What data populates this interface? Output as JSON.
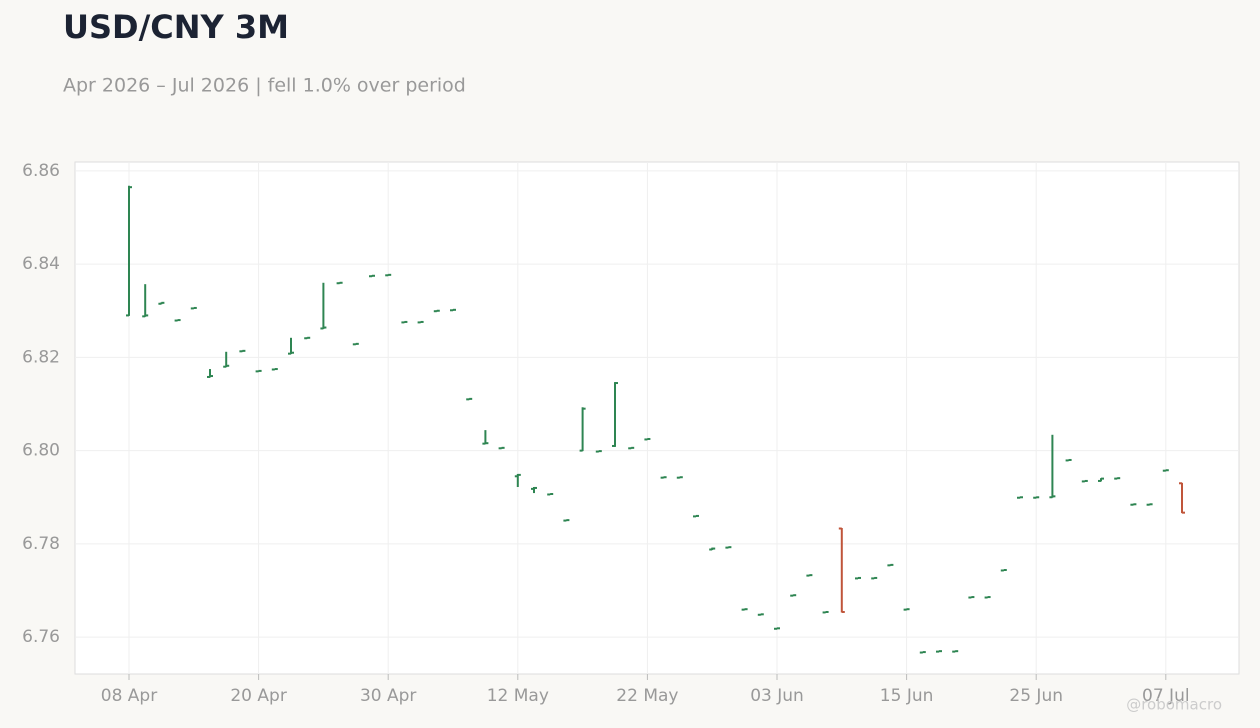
{
  "chart_data": {
    "type": "ohlc",
    "title": "USD/CNY 3M",
    "subtitle": "Apr 2026 – Jul 2026 | fell 1.0% over period",
    "watermark": "@robomacro",
    "categories": [
      "08 Apr",
      null,
      null,
      null,
      null,
      null,
      null,
      null,
      "20 Apr",
      null,
      null,
      null,
      null,
      null,
      null,
      null,
      "30 Apr",
      null,
      null,
      null,
      null,
      null,
      null,
      null,
      "12 May",
      null,
      null,
      null,
      null,
      null,
      null,
      null,
      "22 May",
      null,
      null,
      null,
      null,
      null,
      null,
      null,
      "03 Jun",
      null,
      null,
      null,
      null,
      null,
      null,
      null,
      "15 Jun",
      null,
      null,
      null,
      null,
      null,
      null,
      null,
      "25 Jun",
      null,
      null,
      null,
      null,
      null,
      null,
      null,
      "07 Jul",
      null
    ],
    "up_color": "#2e8552",
    "down_color": "#c0553a",
    "open": [
      6.829,
      6.8288,
      6.8315,
      6.8279,
      6.8305,
      6.8158,
      6.818,
      6.8213,
      6.817,
      6.8174,
      6.8208,
      6.8241,
      6.8262,
      6.8359,
      6.8228,
      6.8374,
      6.8376,
      6.8275,
      6.8275,
      6.8299,
      6.8301,
      6.811,
      6.8015,
      6.8005,
      6.7945,
      6.7918,
      6.7906,
      6.785,
      6.8,
      6.7998,
      6.801,
      6.8005,
      6.8024,
      6.7942,
      6.7942,
      6.7859,
      6.7788,
      6.7792,
      6.7659,
      6.7648,
      6.7618,
      6.7689,
      6.7732,
      6.7653,
      6.7833,
      6.7726,
      6.7726,
      6.7754,
      6.7659,
      6.7567,
      6.7569,
      6.7569,
      6.7685,
      6.7685,
      6.7743,
      6.7899,
      6.7899,
      6.79,
      6.7979,
      6.7934,
      6.7935,
      6.794,
      6.7884,
      6.7884,
      6.7957,
      6.793
    ],
    "high": [
      6.8568,
      6.8357,
      6.8318,
      6.8281,
      6.8307,
      6.8175,
      6.8212,
      6.8215,
      6.8172,
      6.8176,
      6.8242,
      6.8243,
      6.836,
      6.8361,
      6.823,
      6.8376,
      6.8378,
      6.8277,
      6.8277,
      6.8301,
      6.8303,
      6.8112,
      6.8044,
      6.8007,
      6.795,
      6.7922,
      6.7908,
      6.7852,
      6.8093,
      6.8,
      6.8147,
      6.8007,
      6.8026,
      6.7944,
      6.7944,
      6.7861,
      6.7792,
      6.7794,
      6.7661,
      6.765,
      6.762,
      6.7691,
      6.7734,
      6.7655,
      6.7834,
      6.7728,
      6.7728,
      6.7756,
      6.7661,
      6.7569,
      6.7571,
      6.7571,
      6.7687,
      6.7687,
      6.7745,
      6.7901,
      6.7901,
      6.8034,
      6.7981,
      6.7936,
      6.7941,
      6.7942,
      6.7886,
      6.7886,
      6.7959,
      6.7931
    ],
    "low": [
      6.8289,
      6.8287,
      6.8314,
      6.8278,
      6.8304,
      6.8157,
      6.8179,
      6.8212,
      6.8169,
      6.8173,
      6.8207,
      6.824,
      6.8261,
      6.8358,
      6.8227,
      6.8373,
      6.8375,
      6.8274,
      6.8274,
      6.8298,
      6.83,
      6.8109,
      6.8014,
      6.8004,
      6.7922,
      6.7909,
      6.7905,
      6.7849,
      6.7999,
      6.7997,
      6.8008,
      6.8004,
      6.8023,
      6.7941,
      6.7941,
      6.7858,
      6.7787,
      6.7791,
      6.7658,
      6.7647,
      6.7617,
      6.7688,
      6.7731,
      6.7652,
      6.7653,
      6.7725,
      6.7725,
      6.7753,
      6.7658,
      6.7566,
      6.7568,
      6.7568,
      6.7684,
      6.7684,
      6.7742,
      6.7898,
      6.7898,
      6.7899,
      6.7978,
      6.7933,
      6.7934,
      6.7939,
      6.7883,
      6.7883,
      6.7956,
      6.7866
    ],
    "close": [
      6.8565,
      6.829,
      6.8317,
      6.828,
      6.8306,
      6.816,
      6.8182,
      6.8214,
      6.8171,
      6.8175,
      6.821,
      6.8242,
      6.8264,
      6.836,
      6.8229,
      6.8375,
      6.8377,
      6.8276,
      6.8276,
      6.83,
      6.8302,
      6.8111,
      6.8016,
      6.8006,
      6.7948,
      6.792,
      6.7907,
      6.7851,
      6.809,
      6.7999,
      6.8145,
      6.8006,
      6.8025,
      6.7943,
      6.7943,
      6.786,
      6.779,
      6.7793,
      6.766,
      6.7649,
      6.7619,
      6.769,
      6.7733,
      6.7654,
      6.7654,
      6.7727,
      6.7727,
      6.7755,
      6.766,
      6.7568,
      6.757,
      6.757,
      6.7686,
      6.7686,
      6.7744,
      6.79,
      6.79,
      6.7902,
      6.798,
      6.7935,
      6.794,
      6.7941,
      6.7885,
      6.7885,
      6.7958,
      6.7867
    ],
    "ylim": [
      6.7521,
      6.8619
    ],
    "yticks": [
      6.76,
      6.78,
      {
        "value": 6.8,
        "label": "6.80"
      },
      6.82,
      6.84,
      6.86
    ],
    "grid": true
  }
}
